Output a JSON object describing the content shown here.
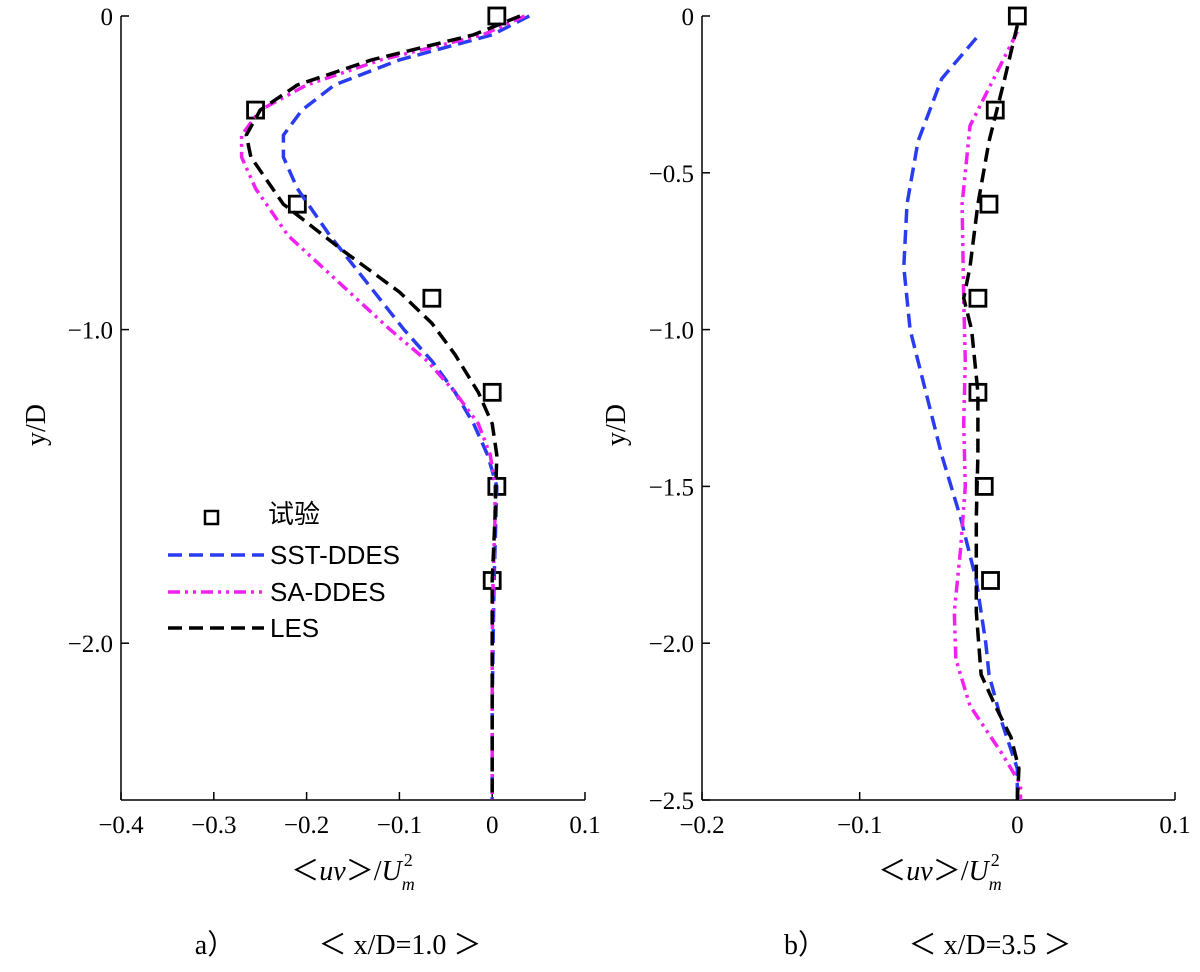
{
  "chart_data": [
    {
      "type": "line",
      "panel_label": "a）",
      "panel_condition": "＜ x/D=1.0 ＞",
      "xlabel": "＜uv＞/U_m^2",
      "ylabel": "y/D",
      "xlim": [
        -0.4,
        0.1
      ],
      "ylim": [
        -2.5,
        0
      ],
      "xticks": [
        -0.4,
        -0.3,
        -0.2,
        -0.1,
        0,
        0.1
      ],
      "xtick_labels": [
        "−0.4",
        "−0.3",
        "−0.2",
        "−0.1",
        "0",
        "0.1"
      ],
      "yticks": [
        0,
        -1.0,
        -2.0
      ],
      "ytick_labels": [
        "0",
        "−1.0",
        "−2.0"
      ],
      "legend": {
        "placement": "middle-left",
        "entries": [
          "试验",
          "SST-DDES",
          "SA-DDES",
          "LES"
        ]
      },
      "series": [
        {
          "name": "试验",
          "style": "markers",
          "color": "#000000",
          "points": [
            [
              0.005,
              0
            ],
            [
              -0.255,
              -0.3
            ],
            [
              -0.21,
              -0.6
            ],
            [
              -0.065,
              -0.9
            ],
            [
              0,
              -1.2
            ],
            [
              0.005,
              -1.5
            ],
            [
              0,
              -1.8
            ]
          ]
        },
        {
          "name": "SST-DDES",
          "style": "dashed",
          "color": "#2a3cf0",
          "points": [
            [
              0.04,
              0
            ],
            [
              0,
              -0.06
            ],
            [
              -0.1,
              -0.14
            ],
            [
              -0.17,
              -0.22
            ],
            [
              -0.205,
              -0.3
            ],
            [
              -0.225,
              -0.38
            ],
            [
              -0.225,
              -0.45
            ],
            [
              -0.21,
              -0.55
            ],
            [
              -0.175,
              -0.7
            ],
            [
              -0.135,
              -0.85
            ],
            [
              -0.095,
              -1.0
            ],
            [
              -0.065,
              -1.1
            ],
            [
              -0.04,
              -1.2
            ],
            [
              -0.02,
              -1.3
            ],
            [
              -0.005,
              -1.4
            ],
            [
              0.005,
              -1.5
            ],
            [
              0.004,
              -1.6
            ],
            [
              0.002,
              -1.8
            ],
            [
              0.001,
              -2.0
            ],
            [
              0,
              -2.2
            ],
            [
              0,
              -2.5
            ]
          ]
        },
        {
          "name": "SA-DDES",
          "style": "dash-dot-dot",
          "color": "#f020f0",
          "points": [
            [
              0.035,
              0
            ],
            [
              -0.01,
              -0.06
            ],
            [
              -0.12,
              -0.14
            ],
            [
              -0.2,
              -0.22
            ],
            [
              -0.25,
              -0.3
            ],
            [
              -0.27,
              -0.38
            ],
            [
              -0.27,
              -0.45
            ],
            [
              -0.255,
              -0.55
            ],
            [
              -0.22,
              -0.7
            ],
            [
              -0.165,
              -0.85
            ],
            [
              -0.11,
              -1.0
            ],
            [
              -0.07,
              -1.1
            ],
            [
              -0.04,
              -1.2
            ],
            [
              -0.015,
              -1.3
            ],
            [
              -0.002,
              -1.4
            ],
            [
              0.003,
              -1.5
            ],
            [
              0.003,
              -1.6
            ],
            [
              0.001,
              -1.8
            ],
            [
              0,
              -2.0
            ],
            [
              0,
              -2.2
            ],
            [
              0,
              -2.5
            ]
          ]
        },
        {
          "name": "LES",
          "style": "dashed",
          "color": "#000000",
          "points": [
            [
              0.03,
              0
            ],
            [
              -0.02,
              -0.06
            ],
            [
              -0.13,
              -0.14
            ],
            [
              -0.21,
              -0.22
            ],
            [
              -0.25,
              -0.3
            ],
            [
              -0.265,
              -0.38
            ],
            [
              -0.26,
              -0.45
            ],
            [
              -0.225,
              -0.6
            ],
            [
              -0.16,
              -0.75
            ],
            [
              -0.1,
              -0.88
            ],
            [
              -0.065,
              -0.98
            ],
            [
              -0.04,
              -1.08
            ],
            [
              -0.015,
              -1.2
            ],
            [
              0,
              -1.3
            ],
            [
              0.005,
              -1.4
            ],
            [
              0.004,
              -1.5
            ],
            [
              0.003,
              -1.6
            ],
            [
              0,
              -1.8
            ],
            [
              0,
              -2.0
            ],
            [
              0,
              -2.2
            ],
            [
              0,
              -2.5
            ]
          ]
        }
      ]
    },
    {
      "type": "line",
      "panel_label": "b）",
      "panel_condition": "＜ x/D=3.5 ＞",
      "xlabel": "＜uv＞/U_m^2",
      "ylabel": "y/D",
      "xlim": [
        -0.2,
        0.1
      ],
      "ylim": [
        -2.5,
        0
      ],
      "xticks": [
        -0.2,
        -0.1,
        0,
        0.1
      ],
      "xtick_labels": [
        "−0.2",
        "−0.1",
        "0",
        "0.1"
      ],
      "yticks": [
        0,
        -0.5,
        -1.0,
        -1.5,
        -2.0,
        -2.5
      ],
      "ytick_labels": [
        "0",
        "−0.5",
        "−1.0",
        "−1.5",
        "−2.0",
        "−2.5"
      ],
      "series": [
        {
          "name": "试验",
          "style": "markers",
          "color": "#000000",
          "points": [
            [
              0,
              0
            ],
            [
              -0.014,
              -0.3
            ],
            [
              -0.018,
              -0.6
            ],
            [
              -0.025,
              -0.9
            ],
            [
              -0.025,
              -1.2
            ],
            [
              -0.021,
              -1.5
            ],
            [
              -0.017,
              -1.8
            ]
          ]
        },
        {
          "name": "SST-DDES",
          "style": "dashed",
          "color": "#2a3cf0",
          "points": [
            [
              -0.026,
              -0.07
            ],
            [
              -0.048,
              -0.2
            ],
            [
              -0.063,
              -0.4
            ],
            [
              -0.07,
              -0.6
            ],
            [
              -0.072,
              -0.8
            ],
            [
              -0.068,
              -1.0
            ],
            [
              -0.058,
              -1.2
            ],
            [
              -0.048,
              -1.4
            ],
            [
              -0.036,
              -1.6
            ],
            [
              -0.026,
              -1.8
            ],
            [
              -0.02,
              -2.0
            ],
            [
              -0.018,
              -2.1
            ],
            [
              -0.01,
              -2.25
            ],
            [
              0,
              -2.4
            ],
            [
              0,
              -2.5
            ]
          ]
        },
        {
          "name": "SA-DDES",
          "style": "dash-dot-dot",
          "color": "#f020f0",
          "points": [
            [
              0,
              -0.05
            ],
            [
              -0.015,
              -0.2
            ],
            [
              -0.03,
              -0.35
            ],
            [
              -0.035,
              -0.6
            ],
            [
              -0.034,
              -0.9
            ],
            [
              -0.033,
              -1.1
            ],
            [
              -0.034,
              -1.3
            ],
            [
              -0.033,
              -1.5
            ],
            [
              -0.036,
              -1.7
            ],
            [
              -0.04,
              -1.9
            ],
            [
              -0.039,
              -2.05
            ],
            [
              -0.03,
              -2.2
            ],
            [
              -0.01,
              -2.35
            ],
            [
              0.002,
              -2.45
            ],
            [
              0.002,
              -2.5
            ]
          ]
        },
        {
          "name": "LES",
          "style": "dashed",
          "color": "#000000",
          "points": [
            [
              0,
              -0.03
            ],
            [
              -0.008,
              -0.2
            ],
            [
              -0.018,
              -0.4
            ],
            [
              -0.025,
              -0.6
            ],
            [
              -0.03,
              -0.8
            ],
            [
              -0.034,
              -0.9
            ],
            [
              -0.029,
              -1.0
            ],
            [
              -0.025,
              -1.2
            ],
            [
              -0.025,
              -1.4
            ],
            [
              -0.026,
              -1.6
            ],
            [
              -0.026,
              -1.9
            ],
            [
              -0.023,
              -2.1
            ],
            [
              -0.014,
              -2.2
            ],
            [
              -0.004,
              -2.3
            ],
            [
              0.001,
              -2.4
            ],
            [
              0,
              -2.5
            ]
          ]
        }
      ]
    }
  ]
}
